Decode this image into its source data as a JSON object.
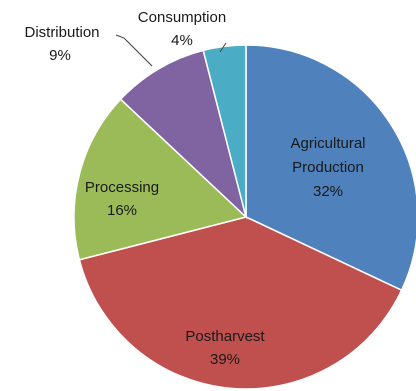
{
  "chart_data": {
    "type": "pie",
    "title": "",
    "slices": [
      {
        "label": "Agricultural Production",
        "value": 32,
        "percent_text": "32%",
        "color": "#4f81bd"
      },
      {
        "label": "Postharvest",
        "value": 39,
        "percent_text": "39%",
        "color": "#c0504d"
      },
      {
        "label": "Processing",
        "value": 16,
        "percent_text": "16%",
        "color": "#9bbb59"
      },
      {
        "label": "Distribution",
        "value": 9,
        "percent_text": "9%",
        "color": "#8064a2"
      },
      {
        "label": "Consumption",
        "value": 4,
        "percent_text": "4%",
        "color": "#4bacc6"
      }
    ],
    "label_lines": {
      "agricultural": [
        "Agricultural",
        "Production",
        "32%"
      ],
      "postharvest": [
        "Postharvest",
        "39%"
      ],
      "processing": [
        "Processing",
        "16%"
      ],
      "distribution": [
        "Distribution",
        "9%"
      ],
      "consumption": [
        "Consumption",
        "4%"
      ]
    },
    "start_angle_note": "clockwise from 12 o'clock",
    "legend": "none"
  }
}
